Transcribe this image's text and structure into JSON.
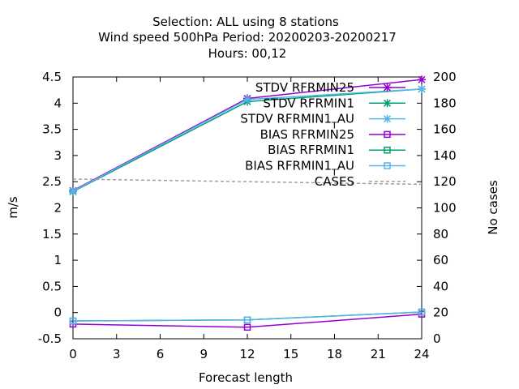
{
  "chart_data": {
    "type": "line",
    "title_lines": [
      "Selection: ALL using     8 stations",
      "Wind speed 500hPa   Period: 20200203-20200217",
      "Hours:  00,12"
    ],
    "xlabel": "Forecast length",
    "ylabel": "m/s",
    "y2label": "No cases",
    "xlim": [
      0,
      24
    ],
    "ylim": [
      -0.5,
      4.5
    ],
    "y2lim": [
      0,
      200
    ],
    "xticks": [
      0,
      3,
      6,
      9,
      12,
      15,
      18,
      21,
      24
    ],
    "yticks": [
      -0.5,
      0,
      0.5,
      1,
      1.5,
      2,
      2.5,
      3,
      3.5,
      4,
      4.5
    ],
    "ytick_labels": [
      "-0.5",
      "0",
      "0.5",
      "1",
      "1.5",
      "2",
      "2.5",
      "3",
      "3.5",
      "4",
      "4.5"
    ],
    "y2ticks": [
      0,
      20,
      40,
      60,
      80,
      100,
      120,
      140,
      160,
      180,
      200
    ],
    "grid": false,
    "legend_position": "top-right inside",
    "x": [
      0,
      12,
      24
    ],
    "series": [
      {
        "name": "STDV RFRMIN25",
        "label_main": "STDV RFRMIN25",
        "label_sub": "",
        "label_tail": "",
        "color": "#9400d3",
        "marker": "x",
        "axis": "y1",
        "dashed": false,
        "values": [
          2.33,
          4.09,
          4.45
        ]
      },
      {
        "name": "STDV RFRMIN1",
        "label_main": "STDV RFRMIN1",
        "label_sub": "",
        "label_tail": "",
        "color": "#009e73",
        "marker": "x",
        "axis": "y1",
        "dashed": false,
        "values": [
          2.31,
          4.03,
          4.27
        ]
      },
      {
        "name": "STDV RFRMIN1_T AU",
        "label_main": "STDV RFRMIN1",
        "label_sub": "T",
        "label_tail": "AU",
        "color": "#56b4e9",
        "marker": "x",
        "axis": "y1",
        "dashed": false,
        "values": [
          2.32,
          4.07,
          4.27
        ]
      },
      {
        "name": "BIAS RFRMIN25",
        "label_main": "BIAS RFRMIN25",
        "label_sub": "",
        "label_tail": "",
        "color": "#9400d3",
        "marker": "square",
        "axis": "y1",
        "dashed": false,
        "values": [
          -0.22,
          -0.28,
          -0.03
        ]
      },
      {
        "name": "BIAS RFRMIN1",
        "label_main": "BIAS RFRMIN1",
        "label_sub": "",
        "label_tail": "",
        "color": "#009e73",
        "marker": "square",
        "axis": "y1",
        "dashed": false,
        "values": [
          -0.16,
          -0.14,
          0.01
        ]
      },
      {
        "name": "BIAS RFRMIN1_T AU",
        "label_main": "BIAS RFRMIN1",
        "label_sub": "T",
        "label_tail": "AU",
        "color": "#56b4e9",
        "marker": "square",
        "axis": "y1",
        "dashed": false,
        "values": [
          -0.16,
          -0.14,
          0.01
        ]
      },
      {
        "name": "CASES",
        "label_main": "CASES",
        "label_sub": "",
        "label_tail": "",
        "color": "#a0a0a0",
        "marker": "none",
        "axis": "y2",
        "dashed": true,
        "values": [
          122,
          120,
          118
        ]
      }
    ]
  }
}
